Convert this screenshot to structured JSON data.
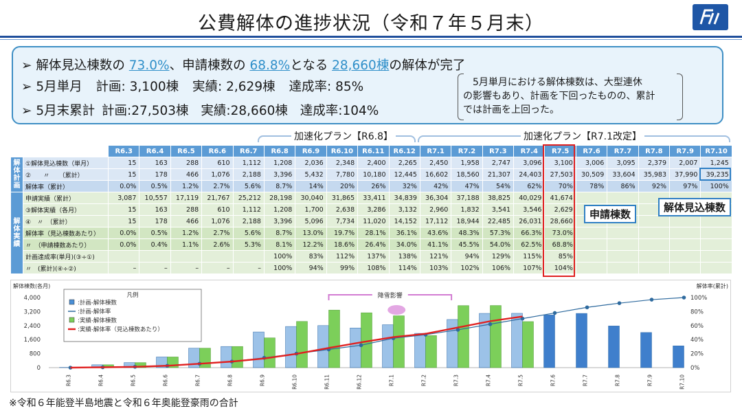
{
  "title": "公費解体の進捗状況（令和７年５月末）",
  "summary": {
    "line1": {
      "a": "➢ 解体見込棟数の",
      "pct1": "73.0%",
      "b": "、申請棟数の",
      "pct2": "68.8%",
      "c": "となる",
      "count": "28,660棟",
      "d": "の解体が完了"
    },
    "line2": {
      "label": "➢ 5月単月",
      "plan": "計画: 3,100棟",
      "actual": "実績: 2,629棟",
      "rate": "達成率: 85%"
    },
    "line3": {
      "label": "➢ 5月末累計",
      "plan": "計画:27,503棟",
      "actual": "実績:28,660棟",
      "rate": "達成率:104%"
    },
    "note": [
      "5月単月における解体棟数は、大型連休",
      "の影響もあり、計画を下回ったものの、累計",
      "では計画を上回った。"
    ]
  },
  "brackets": {
    "plan1": "加速化プラン【R6.8】",
    "plan2": "加速化プラン【R7.1改定】"
  },
  "table": {
    "months": [
      "R6.3",
      "R6.4",
      "R6.5",
      "R6.6",
      "R6.7",
      "R6.8",
      "R6.9",
      "R6.10",
      "R6.11",
      "R6.12",
      "R7.1",
      "R7.2",
      "R7.3",
      "R7.4",
      "R7.5",
      "R7.6",
      "R7.7",
      "R7.8",
      "R7.9",
      "R7.10"
    ],
    "plan_group": "解体計画",
    "actual_group": "解体実績",
    "rows": [
      {
        "label": "①解体見込棟数（単月）",
        "group": "plan",
        "values": [
          "15",
          "163",
          "288",
          "610",
          "1,112",
          "1,208",
          "2,036",
          "2,348",
          "2,400",
          "2,265",
          "2,450",
          "1,958",
          "2,747",
          "3,096",
          "3,100",
          "3,006",
          "3,095",
          "2,379",
          "2,007",
          "1,245"
        ]
      },
      {
        "label": "②　　〃　　（累計）",
        "group": "plan",
        "values": [
          "15",
          "178",
          "466",
          "1,076",
          "2,188",
          "3,396",
          "5,432",
          "7,780",
          "10,180",
          "12,445",
          "16,602",
          "18,560",
          "21,307",
          "24,403",
          "27,503",
          "30,509",
          "33,604",
          "35,983",
          "37,990",
          "39,235"
        ]
      },
      {
        "label": "解体率（累計）",
        "group": "plan2",
        "values": [
          "0.0%",
          "0.5%",
          "1.2%",
          "2.7%",
          "5.6%",
          "8.7%",
          "14%",
          "20%",
          "26%",
          "32%",
          "42%",
          "47%",
          "54%",
          "62%",
          "70%",
          "78%",
          "86%",
          "92%",
          "97%",
          "100%"
        ]
      },
      {
        "label": "申請実績（累計）",
        "group": "act",
        "values": [
          "3,087",
          "10,557",
          "17,119",
          "21,767",
          "25,212",
          "28,198",
          "30,040",
          "31,865",
          "33,411",
          "34,839",
          "36,304",
          "37,188",
          "38,825",
          "40,029",
          "41,674",
          "",
          "",
          "",
          "",
          ""
        ]
      },
      {
        "label": "③解体実績（各月）",
        "group": "act",
        "values": [
          "15",
          "163",
          "288",
          "610",
          "1,112",
          "1,208",
          "1,700",
          "2,638",
          "3,286",
          "3,132",
          "2,960",
          "1,832",
          "3,541",
          "3,546",
          "2,629",
          "",
          "",
          "",
          "",
          ""
        ]
      },
      {
        "label": "④　〃　（累計）",
        "group": "act",
        "values": [
          "15",
          "178",
          "466",
          "1,076",
          "2,188",
          "3,396",
          "5,096",
          "7,734",
          "11,020",
          "14,152",
          "17,112",
          "18,944",
          "22,485",
          "26,031",
          "28,660",
          "",
          "",
          "",
          "",
          ""
        ]
      },
      {
        "label": "解体率（見込棟数あたり）",
        "group": "act2",
        "values": [
          "0.0%",
          "0.5%",
          "1.2%",
          "2.7%",
          "5.6%",
          "8.7%",
          "13.0%",
          "19.7%",
          "28.1%",
          "36.1%",
          "43.6%",
          "48.3%",
          "57.3%",
          "66.3%",
          "73.0%",
          "",
          "",
          "",
          "",
          ""
        ]
      },
      {
        "label": "〃　（申請棟数あたり）",
        "group": "act2",
        "values": [
          "0.0%",
          "0.4%",
          "1.1%",
          "2.6%",
          "5.3%",
          "8.1%",
          "12.2%",
          "18.6%",
          "26.4%",
          "34.0%",
          "41.1%",
          "45.5%",
          "54.0%",
          "62.5%",
          "68.8%",
          "",
          "",
          "",
          "",
          ""
        ]
      },
      {
        "label": "計画達成率(単月)(③÷①)",
        "group": "act",
        "values": [
          "",
          "",
          "",
          "",
          "",
          "100%",
          "83%",
          "112%",
          "137%",
          "138%",
          "121%",
          "94%",
          "129%",
          "115%",
          "85%",
          "",
          "",
          "",
          "",
          ""
        ]
      },
      {
        "label": "〃　(累計)(④÷②)",
        "group": "act",
        "values": [
          "–",
          "–",
          "–",
          "–",
          "–",
          "100%",
          "94%",
          "99%",
          "108%",
          "114%",
          "103%",
          "102%",
          "106%",
          "107%",
          "104%",
          "",
          "",
          "",
          "",
          ""
        ]
      }
    ]
  },
  "callouts": {
    "applications": "申請棟数",
    "expected": "解体見込棟数"
  },
  "chart_data": {
    "type": "bar",
    "categories": [
      "R6.3",
      "R6.4",
      "R6.5",
      "R6.6",
      "R6.7",
      "R6.8",
      "R6.9",
      "R6.10",
      "R6.11",
      "R6.12",
      "R7.1",
      "R7.2",
      "R7.3",
      "R7.4",
      "R7.5",
      "R7.6",
      "R7.7",
      "R7.8",
      "R7.9",
      "R7.10"
    ],
    "y_left_label": "解体棟数(各月)",
    "y_right_label": "解体率(累計)",
    "ylim": [
      0,
      4000
    ],
    "y_ticks": [
      "4,000",
      "3,200",
      "2,400",
      "1,600",
      "800",
      "0"
    ],
    "y2_ticks": [
      "100%",
      "80%",
      "60%",
      "40%",
      "20%",
      "0%"
    ],
    "legend_title": "凡例",
    "legend": [
      ":計画-解体棟数",
      ":計画-解体率",
      ":実績-解体棟数",
      ":実績-解体率（見込棟数あたり）"
    ],
    "annotation": "降雪影響",
    "series": [
      {
        "name": "計画-解体棟数",
        "kind": "bar",
        "color": "#4a8fd6",
        "values": [
          15,
          163,
          288,
          610,
          1112,
          1208,
          2036,
          2348,
          2400,
          2265,
          2450,
          1958,
          2747,
          3096,
          3100,
          3006,
          3095,
          2379,
          2007,
          1245
        ]
      },
      {
        "name": "実績-解体棟数",
        "kind": "bar",
        "color": "#7ccf5a",
        "values": [
          15,
          163,
          288,
          610,
          1112,
          1208,
          1700,
          2638,
          3286,
          3132,
          2960,
          1832,
          3541,
          3546,
          2629,
          null,
          null,
          null,
          null,
          null
        ]
      },
      {
        "name": "計画-解体率",
        "kind": "line",
        "color": "#2e6a9e",
        "values": [
          0.0,
          0.5,
          1.2,
          2.7,
          5.6,
          8.7,
          14,
          20,
          26,
          32,
          42,
          47,
          54,
          62,
          70,
          78,
          86,
          92,
          97,
          100
        ]
      },
      {
        "name": "実績-解体率（見込棟数あたり）",
        "kind": "line",
        "color": "#e02020",
        "values": [
          0.0,
          0.5,
          1.2,
          2.7,
          5.6,
          8.7,
          13.0,
          19.7,
          28.1,
          36.1,
          43.6,
          48.3,
          57.3,
          66.3,
          73.0,
          null,
          null,
          null,
          null,
          null
        ]
      }
    ]
  },
  "footer": "※令和６年能登半島地震と令和６年奥能登豪雨の合計"
}
